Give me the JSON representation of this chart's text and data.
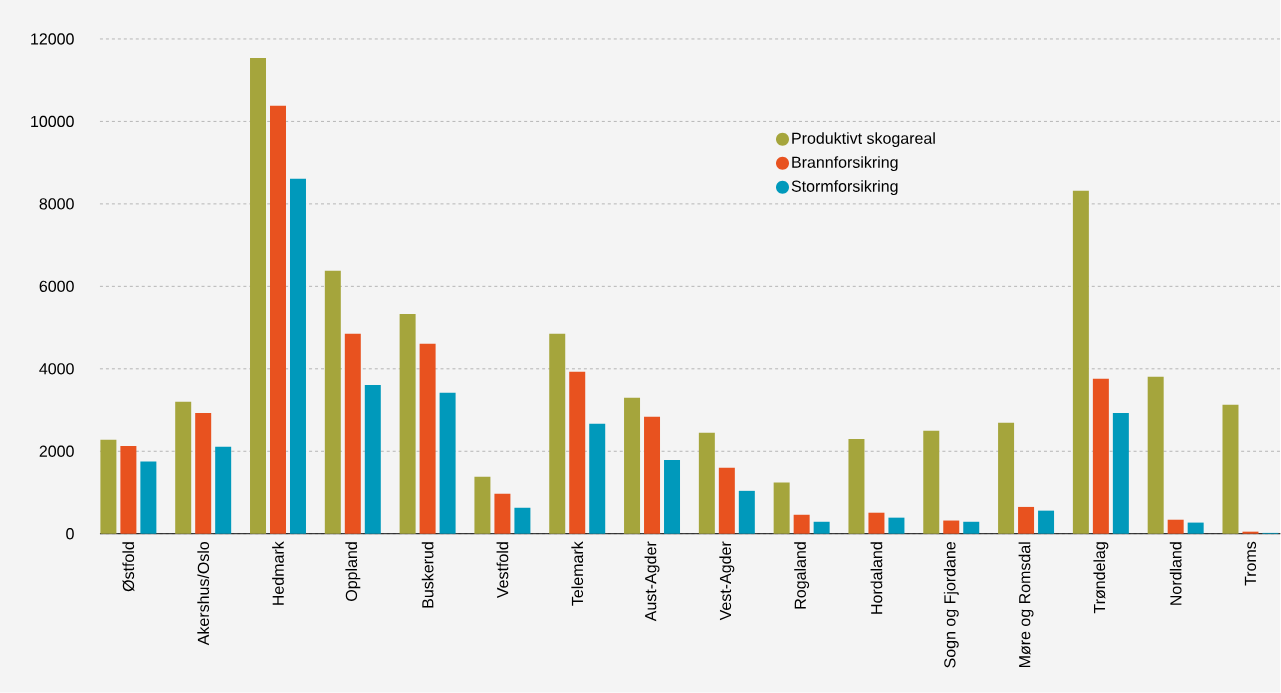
{
  "chart_data": {
    "type": "bar",
    "categories": [
      "Østfold",
      "Akershus/Oslo",
      "Hedmark",
      "Oppland",
      "Buskerud",
      "Vestfold",
      "Telemark",
      "Aust-Agder",
      "Vest-Agder",
      "Rogaland",
      "Hordaland",
      "Sogn og Fjordane",
      "Møre og Romsdal",
      "Trøndelag",
      "Nordland",
      "Troms"
    ],
    "series": [
      {
        "name": "Produktivt skogareal",
        "color": "#a5a53c",
        "values": [
          2280,
          3200,
          11540,
          6380,
          5330,
          1380,
          4850,
          3300,
          2450,
          1240,
          2300,
          2500,
          2690,
          8320,
          3810,
          3130
        ]
      },
      {
        "name": "Brannforsikring",
        "color": "#e8521f",
        "values": [
          2130,
          2930,
          10380,
          4850,
          4610,
          970,
          3930,
          2840,
          1600,
          460,
          510,
          320,
          650,
          3760,
          340,
          50
        ]
      },
      {
        "name": "Stormforsikring",
        "color": "#0099bb",
        "values": [
          1750,
          2110,
          8610,
          3610,
          3420,
          630,
          2670,
          1790,
          1040,
          290,
          390,
          290,
          560,
          2930,
          270,
          20
        ]
      }
    ],
    "ylim": [
      0,
      12000
    ],
    "yticks": [
      0,
      2000,
      4000,
      6000,
      8000,
      10000,
      12000
    ],
    "grid": "y",
    "legend": "top"
  }
}
